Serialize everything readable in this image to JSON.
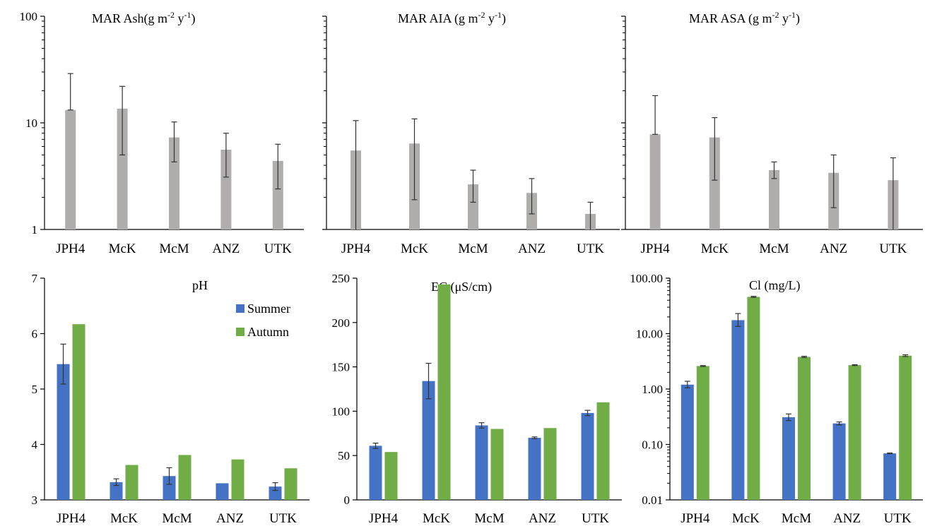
{
  "colors": {
    "ash": "#b0adad",
    "summer": "#4472c4",
    "autumn": "#70ad47",
    "axis": "#000000",
    "error": "#333333"
  },
  "chart_data": [
    {
      "type": "bar",
      "title": "MAR Ash",
      "title_unit": "(g m",
      "title_sup1": "-2",
      "title_mid": " y",
      "title_sup2": "-1",
      "title_end": ")",
      "scale": "log",
      "ylim": [
        1,
        100
      ],
      "yticks": [
        {
          "v": 1,
          "label": "1"
        },
        {
          "v": 10,
          "label": "10"
        },
        {
          "v": 100,
          "label": "100"
        }
      ],
      "show_ytick_labels": true,
      "categories": [
        "JPH4",
        "McK",
        "McM",
        "ANZ",
        "UTK"
      ],
      "series": [
        {
          "values": [
            13.2,
            13.6,
            7.3,
            5.6,
            4.4
          ],
          "err_low": [
            13.2,
            5.0,
            4.3,
            3.1,
            2.4
          ],
          "err_high": [
            29.0,
            22.0,
            10.2,
            8.0,
            6.3
          ]
        }
      ]
    },
    {
      "type": "bar",
      "title": "MAR AIA",
      "title_unit": " (g m",
      "title_sup1": "-2",
      "title_mid": " y",
      "title_sup2": "-1",
      "title_end": ")",
      "scale": "log",
      "ylim": [
        1,
        100
      ],
      "yticks": [
        {
          "v": 1,
          "label": ""
        },
        {
          "v": 10,
          "label": ""
        },
        {
          "v": 100,
          "label": ""
        }
      ],
      "show_ytick_labels": false,
      "categories": [
        "JPH4",
        "McK",
        "McM",
        "ANZ",
        "UTK"
      ],
      "series": [
        {
          "values": [
            5.5,
            6.4,
            2.65,
            2.2,
            1.4
          ],
          "err_low": [
            1.0,
            1.9,
            1.8,
            1.4,
            1.0
          ],
          "err_high": [
            10.5,
            10.9,
            3.6,
            3.0,
            1.8
          ]
        }
      ]
    },
    {
      "type": "bar",
      "title": "MAR ASA",
      "title_unit": " (g m",
      "title_sup1": "-2",
      "title_mid": " y",
      "title_sup2": "-1",
      "title_end": ")",
      "scale": "log",
      "ylim": [
        1,
        100
      ],
      "yticks": [
        {
          "v": 1,
          "label": ""
        },
        {
          "v": 10,
          "label": ""
        },
        {
          "v": 100,
          "label": ""
        }
      ],
      "show_ytick_labels": false,
      "categories": [
        "JPH4",
        "McK",
        "McM",
        "ANZ",
        "UTK"
      ],
      "series": [
        {
          "values": [
            7.8,
            7.3,
            3.6,
            3.4,
            2.9
          ],
          "err_low": [
            7.8,
            2.9,
            3.0,
            1.6,
            1.0
          ],
          "err_high": [
            18.0,
            11.2,
            4.3,
            5.0,
            4.7
          ]
        }
      ]
    },
    {
      "type": "bar",
      "title": "pH",
      "scale": "linear",
      "ylim": [
        3,
        7
      ],
      "yticks": [
        {
          "v": 3,
          "label": "3"
        },
        {
          "v": 4,
          "label": "4"
        },
        {
          "v": 5,
          "label": "5"
        },
        {
          "v": 6,
          "label": "6"
        },
        {
          "v": 7,
          "label": "7"
        }
      ],
      "show_ytick_labels": true,
      "legend": {
        "placement": "top-right",
        "entries": [
          "Summer",
          "Autumn"
        ]
      },
      "categories": [
        "JPH4",
        "McK",
        "McM",
        "ANZ",
        "UTK"
      ],
      "series": [
        {
          "name": "Summer",
          "values": [
            5.45,
            3.32,
            3.43,
            3.3,
            3.24
          ],
          "err": [
            0.36,
            0.06,
            0.15,
            0.0,
            0.07
          ]
        },
        {
          "name": "Autumn",
          "values": [
            6.17,
            3.63,
            3.81,
            3.73,
            3.57
          ],
          "err": [
            0,
            0,
            0,
            0,
            0
          ]
        }
      ]
    },
    {
      "type": "bar",
      "title": "EC",
      "title_unit": " (μS/cm)",
      "scale": "linear",
      "ylim": [
        0,
        250
      ],
      "yticks": [
        {
          "v": 0,
          "label": "0"
        },
        {
          "v": 50,
          "label": "50"
        },
        {
          "v": 100,
          "label": "100"
        },
        {
          "v": 150,
          "label": "150"
        },
        {
          "v": 200,
          "label": "200"
        },
        {
          "v": 250,
          "label": "250"
        }
      ],
      "show_ytick_labels": true,
      "categories": [
        "JPH4",
        "McK",
        "McM",
        "ANZ",
        "UTK"
      ],
      "series": [
        {
          "name": "Summer",
          "values": [
            61,
            134,
            84,
            70,
            98
          ],
          "err": [
            3,
            20,
            3,
            1,
            3
          ]
        },
        {
          "name": "Autumn",
          "values": [
            54,
            243,
            80,
            81,
            110
          ],
          "err": [
            0,
            0,
            0,
            0,
            0
          ]
        }
      ]
    },
    {
      "type": "bar",
      "title": "Cl",
      "title_unit": " (mg/L)",
      "scale": "log",
      "ylim": [
        0.01,
        100
      ],
      "yticks": [
        {
          "v": 0.01,
          "label": "0.01"
        },
        {
          "v": 0.1,
          "label": "0.10"
        },
        {
          "v": 1,
          "label": "1.00"
        },
        {
          "v": 10,
          "label": "10.00"
        },
        {
          "v": 100,
          "label": "100.00"
        }
      ],
      "show_ytick_labels": true,
      "categories": [
        "JPH4",
        "McK",
        "McM",
        "ANZ",
        "UTK"
      ],
      "series": [
        {
          "name": "Summer",
          "values": [
            1.2,
            17.5,
            0.31,
            0.24,
            0.069
          ],
          "err_low": [
            1.05,
            13.5,
            0.27,
            0.225,
            0.068
          ],
          "err_high": [
            1.38,
            23.0,
            0.355,
            0.255,
            0.07
          ]
        },
        {
          "name": "Autumn",
          "values": [
            2.6,
            46.0,
            3.8,
            2.7,
            4.0
          ],
          "err_low": [
            2.55,
            45.0,
            3.7,
            2.65,
            3.85
          ],
          "err_high": [
            2.65,
            47.0,
            3.9,
            2.75,
            4.15
          ]
        }
      ]
    }
  ]
}
